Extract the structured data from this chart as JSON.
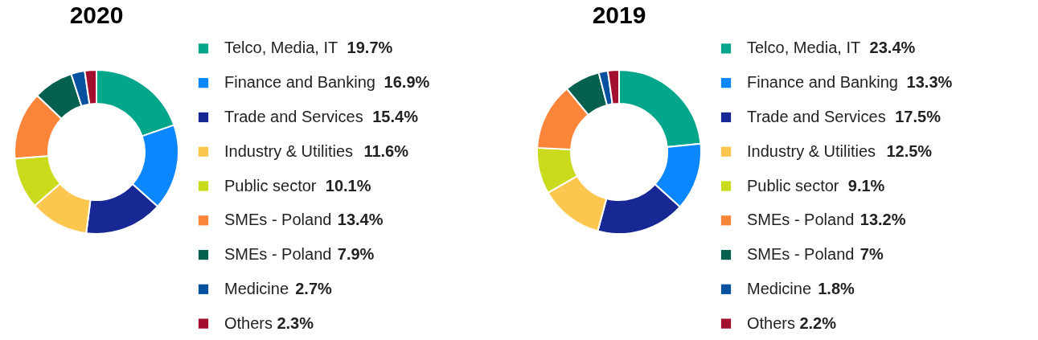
{
  "chart_data": [
    {
      "type": "donut",
      "title": "2020",
      "legend": "right",
      "categories": [
        "Telco, Media, IT",
        "Finance and Banking",
        "Trade and Services",
        "Industry & Utilities",
        "Public sector",
        "SMEs - Poland",
        "SMEs - Poland",
        "Medicine",
        "Others"
      ],
      "values": [
        19.7,
        16.9,
        15.4,
        11.6,
        10.1,
        13.4,
        7.9,
        2.7,
        2.3
      ],
      "value_labels": [
        "19.7%",
        "16.9%",
        "15.4%",
        "11.6%",
        "10.1%",
        "13.4%",
        "7.9%",
        "2.7%",
        "2.3%"
      ],
      "colors": [
        "#04a68b",
        "#0a87fc",
        "#172794",
        "#fdc74f",
        "#c9db1c",
        "#fd853a",
        "#05604f",
        "#0651a0",
        "#a3102f"
      ]
    },
    {
      "type": "donut",
      "title": "2019",
      "legend": "right",
      "categories": [
        "Telco, Media, IT",
        "Finance and Banking",
        "Trade and Services",
        "Industry & Utilities",
        "Public sector",
        "SMEs - Poland",
        "SMEs - Poland",
        "Medicine",
        "Others"
      ],
      "values": [
        23.4,
        13.3,
        17.5,
        12.5,
        9.1,
        13.2,
        7,
        1.8,
        2.2
      ],
      "value_labels": [
        "23.4%",
        "13.3%",
        "17.5%",
        "12.5%",
        "9.1%",
        "13.2%",
        "7%",
        "1.8%",
        "2.2%"
      ],
      "colors": [
        "#04a68b",
        "#0a87fc",
        "#172794",
        "#fdc74f",
        "#c9db1c",
        "#fd853a",
        "#05604f",
        "#0651a0",
        "#a3102f"
      ]
    }
  ]
}
